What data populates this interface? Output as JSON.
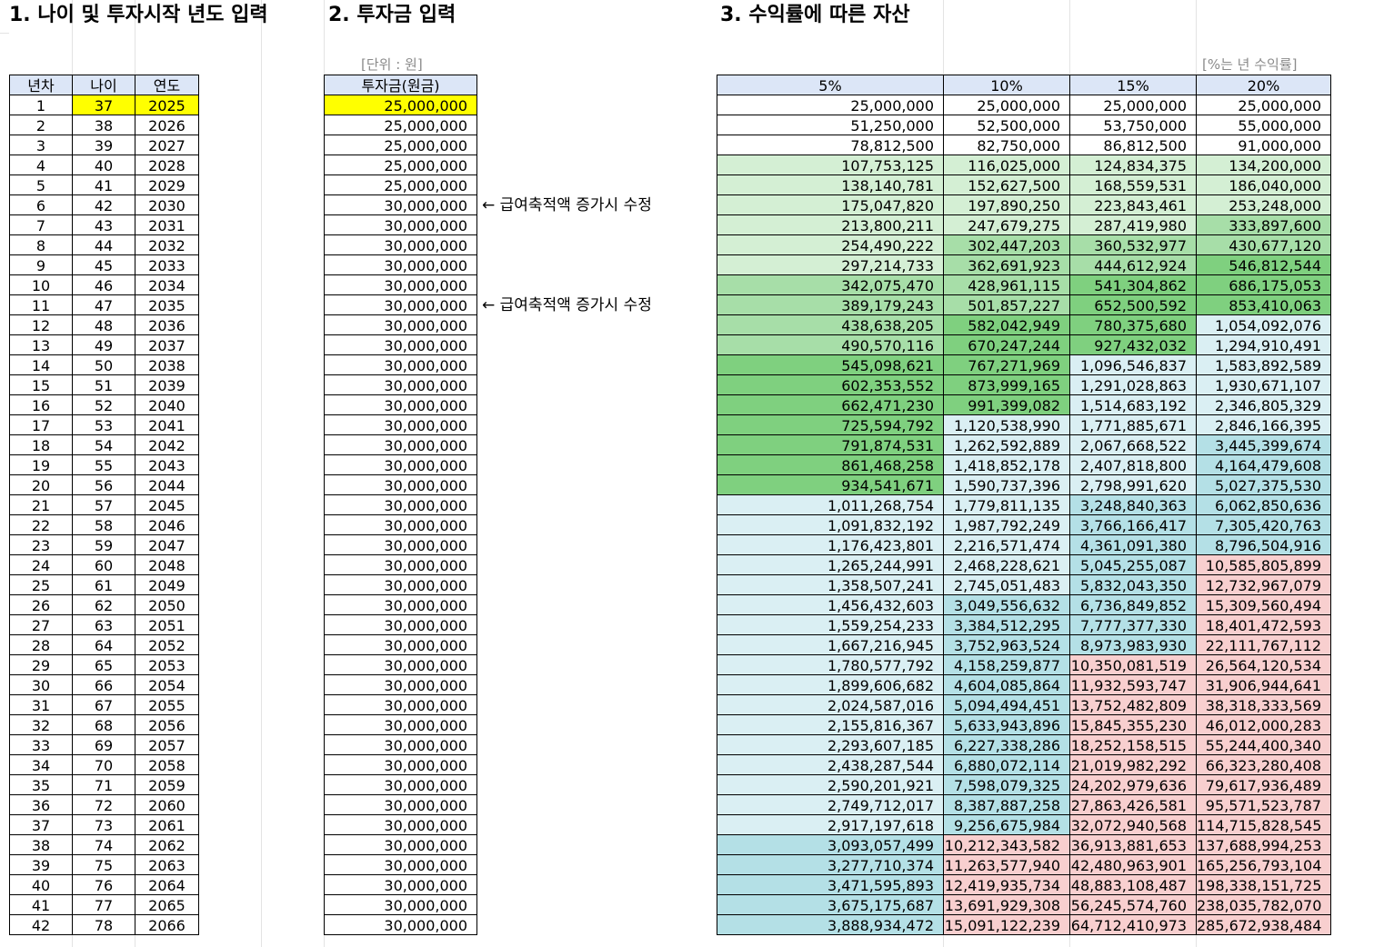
{
  "sections": {
    "s1": "1. 나이 및 투자시작 년도 입력",
    "s2": "2. 투자금 입력",
    "s3": "3. 수익률에 따른 자산"
  },
  "unit_note": "[단위 : 원]",
  "rate_note": "[%는 년 수익률]",
  "edit_note": "← 급여축적액 증가시 수정",
  "table1": {
    "headers": [
      "년차",
      "나이",
      "연도"
    ],
    "rows": [
      [
        "1",
        "37",
        "2025"
      ],
      [
        "2",
        "38",
        "2026"
      ],
      [
        "3",
        "39",
        "2027"
      ],
      [
        "4",
        "40",
        "2028"
      ],
      [
        "5",
        "41",
        "2029"
      ],
      [
        "6",
        "42",
        "2030"
      ],
      [
        "7",
        "43",
        "2031"
      ],
      [
        "8",
        "44",
        "2032"
      ],
      [
        "9",
        "45",
        "2033"
      ],
      [
        "10",
        "46",
        "2034"
      ],
      [
        "11",
        "47",
        "2035"
      ],
      [
        "12",
        "48",
        "2036"
      ],
      [
        "13",
        "49",
        "2037"
      ],
      [
        "14",
        "50",
        "2038"
      ],
      [
        "15",
        "51",
        "2039"
      ],
      [
        "16",
        "52",
        "2040"
      ],
      [
        "17",
        "53",
        "2041"
      ],
      [
        "18",
        "54",
        "2042"
      ],
      [
        "19",
        "55",
        "2043"
      ],
      [
        "20",
        "56",
        "2044"
      ],
      [
        "21",
        "57",
        "2045"
      ],
      [
        "22",
        "58",
        "2046"
      ],
      [
        "23",
        "59",
        "2047"
      ],
      [
        "24",
        "60",
        "2048"
      ],
      [
        "25",
        "61",
        "2049"
      ],
      [
        "26",
        "62",
        "2050"
      ],
      [
        "27",
        "63",
        "2051"
      ],
      [
        "28",
        "64",
        "2052"
      ],
      [
        "29",
        "65",
        "2053"
      ],
      [
        "30",
        "66",
        "2054"
      ],
      [
        "31",
        "67",
        "2055"
      ],
      [
        "32",
        "68",
        "2056"
      ],
      [
        "33",
        "69",
        "2057"
      ],
      [
        "34",
        "70",
        "2058"
      ],
      [
        "35",
        "71",
        "2059"
      ],
      [
        "36",
        "72",
        "2060"
      ],
      [
        "37",
        "73",
        "2061"
      ],
      [
        "38",
        "74",
        "2062"
      ],
      [
        "39",
        "75",
        "2063"
      ],
      [
        "40",
        "76",
        "2064"
      ],
      [
        "41",
        "77",
        "2065"
      ],
      [
        "42",
        "78",
        "2066"
      ]
    ]
  },
  "table2": {
    "header": "투자금(원금)",
    "values": [
      "25,000,000",
      "25,000,000",
      "25,000,000",
      "25,000,000",
      "25,000,000",
      "30,000,000",
      "30,000,000",
      "30,000,000",
      "30,000,000",
      "30,000,000",
      "30,000,000",
      "30,000,000",
      "30,000,000",
      "30,000,000",
      "30,000,000",
      "30,000,000",
      "30,000,000",
      "30,000,000",
      "30,000,000",
      "30,000,000",
      "30,000,000",
      "30,000,000",
      "30,000,000",
      "30,000,000",
      "30,000,000",
      "30,000,000",
      "30,000,000",
      "30,000,000",
      "30,000,000",
      "30,000,000",
      "30,000,000",
      "30,000,000",
      "30,000,000",
      "30,000,000",
      "30,000,000",
      "30,000,000",
      "30,000,000",
      "30,000,000",
      "30,000,000",
      "30,000,000",
      "30,000,000",
      "30,000,000"
    ]
  },
  "table3": {
    "headers": [
      "5%",
      "10%",
      "15%",
      "20%"
    ],
    "rows": [
      [
        "25,000,000",
        "25,000,000",
        "25,000,000",
        "25,000,000"
      ],
      [
        "51,250,000",
        "52,500,000",
        "53,750,000",
        "55,000,000"
      ],
      [
        "78,812,500",
        "82,750,000",
        "86,812,500",
        "91,000,000"
      ],
      [
        "107,753,125",
        "116,025,000",
        "124,834,375",
        "134,200,000"
      ],
      [
        "138,140,781",
        "152,627,500",
        "168,559,531",
        "186,040,000"
      ],
      [
        "175,047,820",
        "197,890,250",
        "223,843,461",
        "253,248,000"
      ],
      [
        "213,800,211",
        "247,679,275",
        "287,419,980",
        "333,897,600"
      ],
      [
        "254,490,222",
        "302,447,203",
        "360,532,977",
        "430,677,120"
      ],
      [
        "297,214,733",
        "362,691,923",
        "444,612,924",
        "546,812,544"
      ],
      [
        "342,075,470",
        "428,961,115",
        "541,304,862",
        "686,175,053"
      ],
      [
        "389,179,243",
        "501,857,227",
        "652,500,592",
        "853,410,063"
      ],
      [
        "438,638,205",
        "582,042,949",
        "780,375,680",
        "1,054,092,076"
      ],
      [
        "490,570,116",
        "670,247,244",
        "927,432,032",
        "1,294,910,491"
      ],
      [
        "545,098,621",
        "767,271,969",
        "1,096,546,837",
        "1,583,892,589"
      ],
      [
        "602,353,552",
        "873,999,165",
        "1,291,028,863",
        "1,930,671,107"
      ],
      [
        "662,471,230",
        "991,399,082",
        "1,514,683,192",
        "2,346,805,329"
      ],
      [
        "725,594,792",
        "1,120,538,990",
        "1,771,885,671",
        "2,846,166,395"
      ],
      [
        "791,874,531",
        "1,262,592,889",
        "2,067,668,522",
        "3,445,399,674"
      ],
      [
        "861,468,258",
        "1,418,852,178",
        "2,407,818,800",
        "4,164,479,608"
      ],
      [
        "934,541,671",
        "1,590,737,396",
        "2,798,991,620",
        "5,027,375,530"
      ],
      [
        "1,011,268,754",
        "1,779,811,135",
        "3,248,840,363",
        "6,062,850,636"
      ],
      [
        "1,091,832,192",
        "1,987,792,249",
        "3,766,166,417",
        "7,305,420,763"
      ],
      [
        "1,176,423,801",
        "2,216,571,474",
        "4,361,091,380",
        "8,796,504,916"
      ],
      [
        "1,265,244,991",
        "2,468,228,621",
        "5,045,255,087",
        "10,585,805,899"
      ],
      [
        "1,358,507,241",
        "2,745,051,483",
        "5,832,043,350",
        "12,732,967,079"
      ],
      [
        "1,456,432,603",
        "3,049,556,632",
        "6,736,849,852",
        "15,309,560,494"
      ],
      [
        "1,559,254,233",
        "3,384,512,295",
        "7,777,377,330",
        "18,401,472,593"
      ],
      [
        "1,667,216,945",
        "3,752,963,524",
        "8,973,983,930",
        "22,111,767,112"
      ],
      [
        "1,780,577,792",
        "4,158,259,877",
        "10,350,081,519",
        "26,564,120,534"
      ],
      [
        "1,899,606,682",
        "4,604,085,864",
        "11,932,593,747",
        "31,906,944,641"
      ],
      [
        "2,024,587,016",
        "5,094,494,451",
        "13,752,482,809",
        "38,318,333,569"
      ],
      [
        "2,155,816,367",
        "5,633,943,896",
        "15,845,355,230",
        "46,012,000,283"
      ],
      [
        "2,293,607,185",
        "6,227,338,286",
        "18,252,158,515",
        "55,244,400,340"
      ],
      [
        "2,438,287,544",
        "6,880,072,114",
        "21,019,982,292",
        "66,323,280,408"
      ],
      [
        "2,590,201,921",
        "7,598,079,325",
        "24,202,979,636",
        "79,617,936,489"
      ],
      [
        "2,749,712,017",
        "8,387,887,258",
        "27,863,426,581",
        "95,571,523,787"
      ],
      [
        "2,917,197,618",
        "9,256,675,984",
        "32,072,940,568",
        "114,715,828,545"
      ],
      [
        "3,093,057,499",
        "10,212,343,582",
        "36,913,881,653",
        "137,688,994,253"
      ],
      [
        "3,277,710,374",
        "11,263,577,940",
        "42,480,963,901",
        "165,256,793,104"
      ],
      [
        "3,471,595,893",
        "12,419,935,734",
        "48,883,108,487",
        "198,338,151,725"
      ],
      [
        "3,675,175,687",
        "13,691,929,308",
        "56,245,574,760",
        "238,035,782,070"
      ],
      [
        "3,888,934,472",
        "15,091,122,239",
        "64,712,410,973",
        "285,672,938,484"
      ]
    ],
    "color_scale": {
      "white": "#ffffff",
      "green_light": "#d4efd4",
      "green_mid": "#a7dea8",
      "green_dark": "#7fd07f",
      "blue_light": "#daeff3",
      "blue_dark": "#b4e0e6",
      "pink": "#f8cfcf"
    }
  },
  "colors": {
    "header_bg": "#dce6f7",
    "input_highlight": "#ffff00"
  }
}
